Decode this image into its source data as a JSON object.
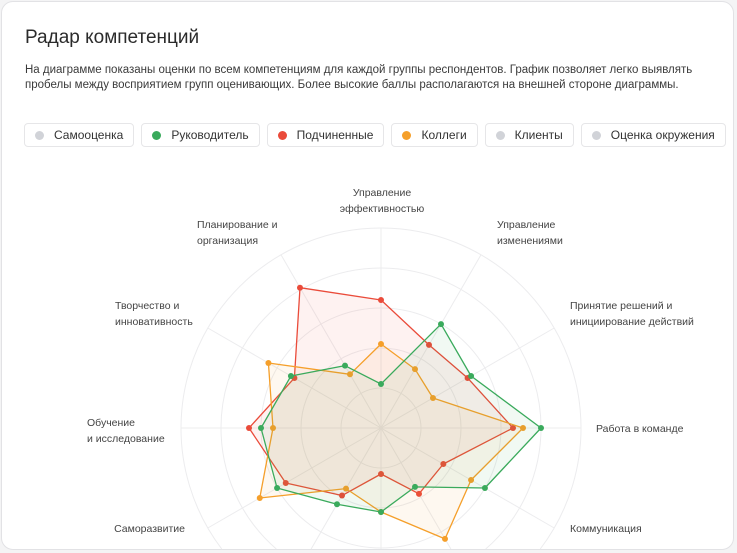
{
  "title": "Радар компетенций",
  "description": "На диаграмме показаны оценки по всем компетенциям для каждой группы респондентов. График позволяет легко выявлять пробелы между восприятием групп оценивающих. Более высокие баллы располагаются на внешней стороне диаграммы.",
  "legend": [
    {
      "label": "Самооценка",
      "color": "#d1d3d8",
      "active": false
    },
    {
      "label": "Руководитель",
      "color": "#3aaa5c",
      "active": true
    },
    {
      "label": "Подчиненные",
      "color": "#ea4b3a",
      "active": true
    },
    {
      "label": "Коллеги",
      "color": "#f59f2a",
      "active": true
    },
    {
      "label": "Клиенты",
      "color": "#d1d3d8",
      "active": false
    },
    {
      "label": "Оценка окружения",
      "color": "#d1d3d8",
      "active": false
    }
  ],
  "chart_data": {
    "type": "radar",
    "rmax": 5,
    "rings": 5,
    "grid": true,
    "axes": [
      {
        "line1": "Управление",
        "line2": "эффективностью"
      },
      {
        "line1": "Управление",
        "line2": "изменениями"
      },
      {
        "line1": "Принятие решений и",
        "line2": "инициирование действий"
      },
      {
        "line1": "Работа в команде",
        "line2": ""
      },
      {
        "line1": "Коммуникация",
        "line2": ""
      },
      {
        "line1": "",
        "line2": ""
      },
      {
        "line1": "",
        "line2": ""
      },
      {
        "line1": "",
        "line2": ""
      },
      {
        "line1": "Саморазвитие",
        "line2": ""
      },
      {
        "line1": "Обучение",
        "line2": "и исследование"
      },
      {
        "line1": "Творчество и",
        "line2": "инновативность"
      },
      {
        "line1": "Планирование и",
        "line2": "организация"
      }
    ],
    "series": [
      {
        "name": "Подчиненные",
        "color": "#ea4b3a",
        "values": [
          3.2,
          2.4,
          2.5,
          3.3,
          1.8,
          1.9,
          1.15,
          1.95,
          2.75,
          3.3,
          2.5,
          4.05
        ]
      },
      {
        "name": "Коллеги",
        "color": "#f59f2a",
        "values": [
          2.1,
          1.7,
          1.5,
          3.55,
          2.6,
          3.2,
          2.1,
          1.75,
          3.5,
          2.7,
          3.25,
          1.55
        ]
      },
      {
        "name": "Руководитель",
        "color": "#3aaa5c",
        "values": [
          1.1,
          3.0,
          2.6,
          4.0,
          3.0,
          1.7,
          2.1,
          2.2,
          3.0,
          3.0,
          2.6,
          1.8
        ]
      }
    ]
  }
}
